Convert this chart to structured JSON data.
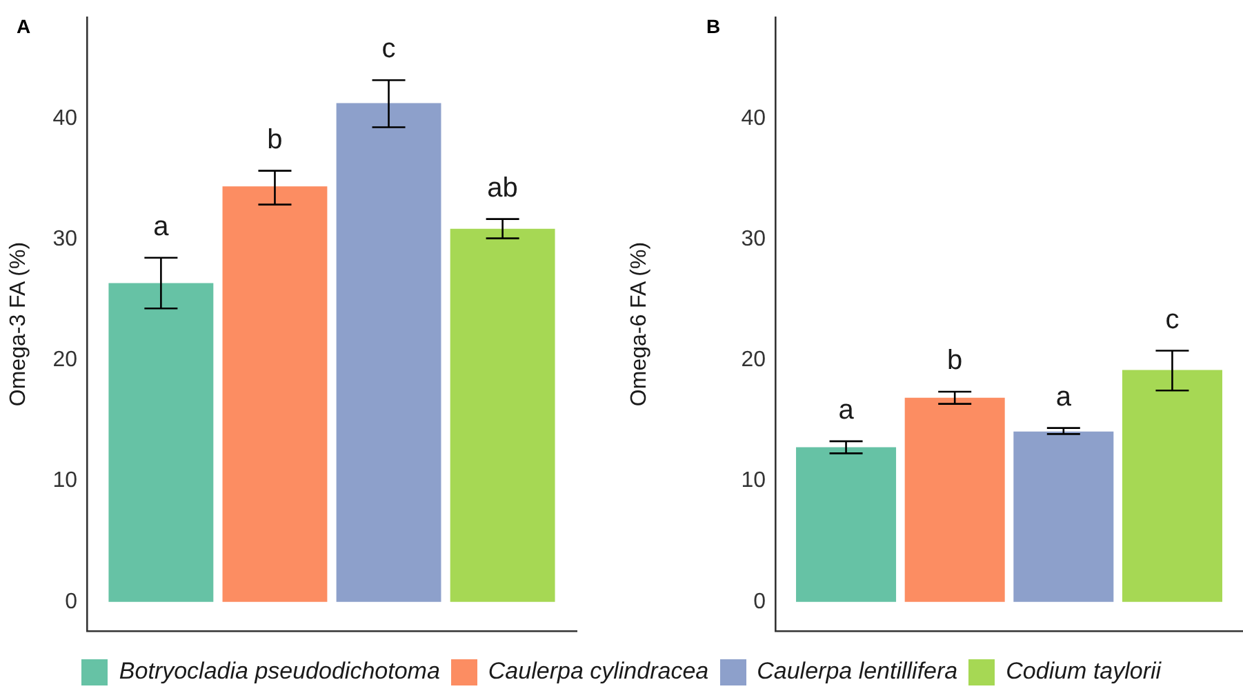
{
  "chart_data": [
    {
      "type": "bar",
      "title": "A",
      "ylabel": "Omega-3 FA (%)",
      "categories": [
        null
      ],
      "ylim": [
        -2.4,
        48.4
      ],
      "yticks": [
        0,
        10,
        20,
        30,
        40
      ],
      "grid": false,
      "legend": "bottom",
      "tick_labels": "y",
      "series": [
        {
          "name": "Botryocladia pseudodichotoma",
          "color": "#66c2a5",
          "values": [
            26.4
          ],
          "errors": [
            [
              24.3,
              28.5
            ]
          ]
        },
        {
          "name": "Caulerpa cylindracea",
          "color": "#fc8d62",
          "values": [
            34.4
          ],
          "errors": [
            [
              32.9,
              35.7
            ]
          ]
        },
        {
          "name": "Caulerpa lentillifera",
          "color": "#8da0cb",
          "values": [
            41.3
          ],
          "errors": [
            [
              39.3,
              43.2
            ]
          ]
        },
        {
          "name": "Codium taylorii",
          "color": "#a6d854",
          "values": [
            30.9
          ],
          "errors": [
            [
              30.1,
              31.7
            ]
          ]
        }
      ],
      "annotations": [
        "a",
        "b",
        "c",
        "ab"
      ]
    },
    {
      "type": "bar",
      "title": "B",
      "ylabel": "Omega-6 FA (%)",
      "categories": [
        null
      ],
      "ylim": [
        -2.4,
        48.4
      ],
      "yticks": [
        0,
        10,
        20,
        30,
        40
      ],
      "grid": false,
      "tick_labels": "y",
      "series": [
        {
          "color": "#66c2a5",
          "values": [
            12.8
          ],
          "errors": [
            [
              12.3,
              13.3
            ]
          ]
        },
        {
          "color": "#fc8d62",
          "values": [
            16.9
          ],
          "errors": [
            [
              16.4,
              17.4
            ]
          ]
        },
        {
          "color": "#8da0cb",
          "values": [
            14.1
          ],
          "errors": [
            [
              13.9,
              14.4
            ]
          ]
        },
        {
          "color": "#a6d854",
          "values": [
            19.2
          ],
          "errors": [
            [
              17.5,
              20.8
            ]
          ]
        }
      ],
      "annotations": [
        "a",
        "b",
        "a",
        "c"
      ]
    }
  ]
}
